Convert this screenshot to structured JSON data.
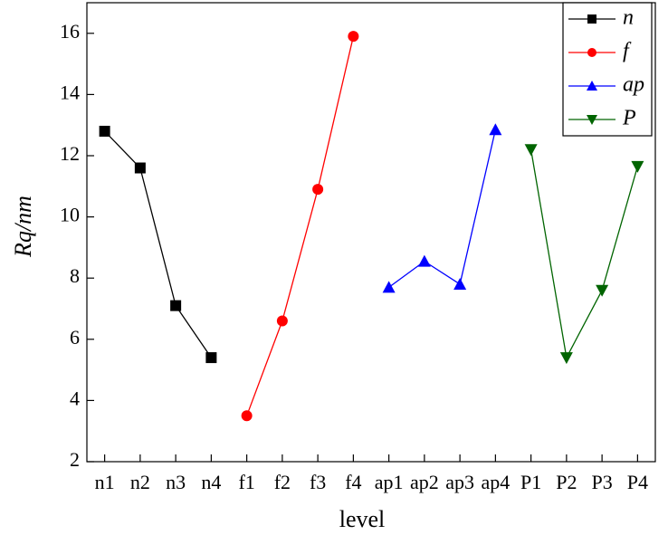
{
  "chart_data": {
    "type": "line",
    "xlabel": "level",
    "ylabel": "Rq/nm",
    "categories": [
      "n1",
      "n2",
      "n3",
      "n4",
      "f1",
      "f2",
      "f3",
      "f4",
      "ap1",
      "ap2",
      "ap3",
      "ap4",
      "P1",
      "P2",
      "P3",
      "P4"
    ],
    "series": [
      {
        "name": "n",
        "color": "#000000",
        "marker": "square",
        "values": [
          12.8,
          11.6,
          7.1,
          5.4,
          null,
          null,
          null,
          null,
          null,
          null,
          null,
          null,
          null,
          null,
          null,
          null
        ]
      },
      {
        "name": "f",
        "color": "#ff0000",
        "marker": "circle",
        "values": [
          null,
          null,
          null,
          null,
          3.5,
          6.6,
          10.9,
          15.9,
          null,
          null,
          null,
          null,
          null,
          null,
          null,
          null
        ]
      },
      {
        "name": "ap",
        "color": "#0000ff",
        "marker": "triangle-up",
        "values": [
          null,
          null,
          null,
          null,
          null,
          null,
          null,
          null,
          7.7,
          8.55,
          7.8,
          12.85,
          null,
          null,
          null,
          null
        ]
      },
      {
        "name": "P",
        "color": "#006400",
        "marker": "triangle-down",
        "values": [
          null,
          null,
          null,
          null,
          null,
          null,
          null,
          null,
          null,
          null,
          null,
          null,
          12.2,
          5.4,
          7.6,
          11.65
        ]
      }
    ],
    "ylim": [
      2,
      17
    ],
    "yticks": [
      2,
      4,
      6,
      8,
      10,
      12,
      14,
      16
    ],
    "legend": "upper right"
  }
}
